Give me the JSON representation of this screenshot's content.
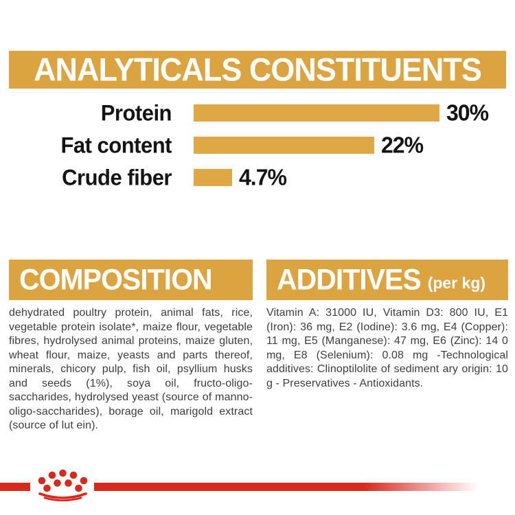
{
  "colors": {
    "gold": "#DCA440",
    "red": "#D7291D",
    "body_text": "#3D3D3C",
    "chart_text": "#141414",
    "header_text": "#FFFFFF"
  },
  "header": {
    "title": "ANALYTICALS CONSTITUENTS"
  },
  "chart_data": {
    "type": "bar",
    "orientation": "horizontal",
    "title": "ANALYTICALS CONSTITUENTS",
    "categories": [
      "Protein",
      "Fat content",
      "Crude fiber"
    ],
    "values": [
      30,
      22,
      4.7
    ],
    "value_labels": [
      "30%",
      "22%",
      "4.7%"
    ],
    "xlim": [
      0,
      30
    ],
    "bar_color": "#DFA845",
    "grid": false,
    "legend": false
  },
  "composition": {
    "title": "COMPOSITION",
    "body": "dehydrated poultry protein, animal fats, rice, vegetable protein isolate*, maize flour, vegetable fibres, hydrolysed animal proteins, maize gluten, wheat flour, maize, yeasts and parts thereof, minerals, chicory pulp, fish oil, psyllium husks and seeds (1%), soya oil, fructo-oligo-saccharides, hydrolysed yeast (source of manno-oligo-saccharides), borage oil, marigold extract (source of lut ein)."
  },
  "additives": {
    "title": "ADDITIVES",
    "subtitle": "(per kg)",
    "body": "Vitamin A: 31000 IU, Vitamin D3: 800 IU, E1 (Iron): 36 mg, E2 (Iodine): 3.6 mg, E4 (Copper): 11 mg, E5 (Manganese): 47 mg, E6 (Zinc): 14 0 mg, E8 (Selenium): 0.08 mg -Technological additives: Clinoptilolite of sediment ary origin: 10 g - Preservatives - Antioxidants."
  },
  "footer": {
    "logo": "royal-canin-crown-icon"
  }
}
